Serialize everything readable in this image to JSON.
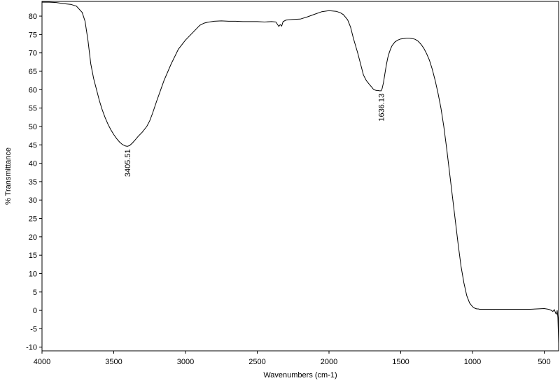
{
  "chart_data": {
    "type": "line",
    "title": "",
    "xlabel": "Wavenumbers (cm-1)",
    "ylabel": "% Transmittance",
    "xlim": [
      4000,
      400
    ],
    "ylim": [
      -11,
      84
    ],
    "x_reversed": true,
    "grid": false,
    "x_ticks": [
      4000,
      3500,
      3000,
      2500,
      2000,
      1500,
      1000,
      500
    ],
    "y_ticks": [
      -10,
      -5,
      0,
      5,
      10,
      15,
      20,
      25,
      30,
      35,
      40,
      45,
      50,
      55,
      60,
      65,
      70,
      75,
      80
    ],
    "series": [
      {
        "x": [
          4000,
          3950,
          3900,
          3850,
          3800,
          3760,
          3720,
          3700,
          3680,
          3660,
          3640,
          3620,
          3600,
          3580,
          3560,
          3540,
          3520,
          3500,
          3480,
          3460,
          3440,
          3420,
          3405.51,
          3390,
          3370,
          3350,
          3330,
          3300,
          3270,
          3250,
          3230,
          3200,
          3150,
          3100,
          3050,
          3000,
          2950,
          2900,
          2870,
          2850,
          2800,
          2750,
          2700,
          2650,
          2600,
          2550,
          2500,
          2450,
          2400,
          2370,
          2360,
          2350,
          2340,
          2330,
          2320,
          2300,
          2250,
          2200,
          2150,
          2100,
          2050,
          2000,
          1950,
          1920,
          1900,
          1870,
          1850,
          1830,
          1800,
          1780,
          1760,
          1740,
          1720,
          1700,
          1690,
          1680,
          1670,
          1660,
          1650,
          1640,
          1636.13,
          1630,
          1620,
          1610,
          1600,
          1590,
          1580,
          1570,
          1560,
          1540,
          1520,
          1500,
          1480,
          1460,
          1440,
          1420,
          1400,
          1380,
          1360,
          1340,
          1320,
          1300,
          1280,
          1260,
          1240,
          1220,
          1200,
          1180,
          1160,
          1140,
          1120,
          1100,
          1080,
          1060,
          1040,
          1020,
          1000,
          985,
          970,
          960,
          950,
          940,
          930,
          920,
          900,
          880,
          860,
          840,
          800,
          750,
          700,
          650,
          600,
          550,
          500,
          470,
          450,
          440,
          430,
          420,
          415,
          410,
          405,
          400
        ],
        "y": [
          83.8,
          83.8,
          83.7,
          83.4,
          83.2,
          82.7,
          81.0,
          78.6,
          73.5,
          67.0,
          63.0,
          60.0,
          57.0,
          54.5,
          52.4,
          50.6,
          49.1,
          47.8,
          46.7,
          45.8,
          45.1,
          44.7,
          44.6,
          44.8,
          45.5,
          46.4,
          47.3,
          48.5,
          50.0,
          51.5,
          53.5,
          57.0,
          62.5,
          67.0,
          71.0,
          73.5,
          75.5,
          77.5,
          78.1,
          78.3,
          78.6,
          78.7,
          78.6,
          78.6,
          78.5,
          78.5,
          78.5,
          78.4,
          78.5,
          78.4,
          77.8,
          77.2,
          77.7,
          77.3,
          78.5,
          78.9,
          79.1,
          79.2,
          79.8,
          80.5,
          81.2,
          81.5,
          81.3,
          80.9,
          80.4,
          79.0,
          77.0,
          74.0,
          70.0,
          67.0,
          64.0,
          62.5,
          61.5,
          60.6,
          60.1,
          59.9,
          59.8,
          59.8,
          59.7,
          59.7,
          59.7,
          60.3,
          62.0,
          64.5,
          66.8,
          68.7,
          70.1,
          71.2,
          72.0,
          73.0,
          73.5,
          73.8,
          73.9,
          74.0,
          74.0,
          73.9,
          73.7,
          73.2,
          72.4,
          71.3,
          69.8,
          68.0,
          65.5,
          62.5,
          59.0,
          55.0,
          50.0,
          44.0,
          37.5,
          31.0,
          24.5,
          18.0,
          12.0,
          7.5,
          4.0,
          2.0,
          1.0,
          0.6,
          0.4,
          0.4,
          0.3,
          0.3,
          0.3,
          0.3,
          0.3,
          0.3,
          0.3,
          0.3,
          0.3,
          0.3,
          0.3,
          0.3,
          0.3,
          0.4,
          0.5,
          0.3,
          0.0,
          -0.3,
          0.2,
          -0.8,
          -1.0,
          0.0,
          -2.0,
          -9.0
        ]
      }
    ],
    "annotations": [
      {
        "x": 3405.51,
        "y": 44.6,
        "label": "3405.51"
      },
      {
        "x": 1636.13,
        "y": 59.7,
        "label": "1636.13"
      }
    ]
  }
}
